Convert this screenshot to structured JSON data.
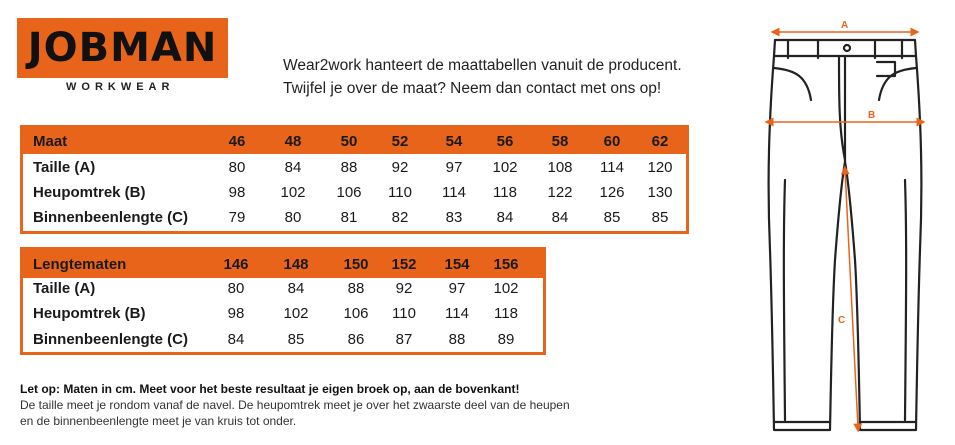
{
  "logo": {
    "brand": "JOBMAN",
    "sub": "WORKWEAR"
  },
  "intro": {
    "line1": "Wear2work hanteert de maattabellen vanuit de producent.",
    "line2": "Twijfel je over de maat? Neem dan contact met ons op!"
  },
  "table1": {
    "header": "Maat",
    "sizes": [
      "46",
      "48",
      "50",
      "52",
      "54",
      "56",
      "58",
      "60",
      "62"
    ],
    "rows": [
      {
        "label": "Taille (A)",
        "values": [
          "80",
          "84",
          "88",
          "92",
          "97",
          "102",
          "108",
          "114",
          "120"
        ]
      },
      {
        "label": "Heupomtrek (B)",
        "values": [
          "98",
          "102",
          "106",
          "110",
          "114",
          "118",
          "122",
          "126",
          "130"
        ]
      },
      {
        "label": "Binnenbeenlengte (C)",
        "values": [
          "79",
          "80",
          "81",
          "82",
          "83",
          "84",
          "84",
          "85",
          "85"
        ]
      }
    ]
  },
  "table2": {
    "header": "Lengtematen",
    "sizes": [
      "146",
      "148",
      "150",
      "152",
      "154",
      "156"
    ],
    "rows": [
      {
        "label": "Taille (A)",
        "values": [
          "80",
          "84",
          "88",
          "92",
          "97",
          "102"
        ]
      },
      {
        "label": "Heupomtrek (B)",
        "values": [
          "98",
          "102",
          "106",
          "110",
          "114",
          "118"
        ]
      },
      {
        "label": "Binnenbeenlengte (C)",
        "values": [
          "84",
          "85",
          "86",
          "87",
          "88",
          "89"
        ]
      }
    ]
  },
  "note": {
    "bold": "Let op: Maten in cm. Meet voor het beste resultaat je eigen broek op, aan de bovenkant!",
    "line2": "De taille meet je rondom vanaf de navel. De heupomtrek meet je over het zwaarste deel van de heupen",
    "line3": "en de binnenbeenlengte meet je van kruis tot onder."
  },
  "diagram": {
    "label_a": "A",
    "label_b": "B",
    "label_c": "C",
    "accent": "#e8641b"
  }
}
